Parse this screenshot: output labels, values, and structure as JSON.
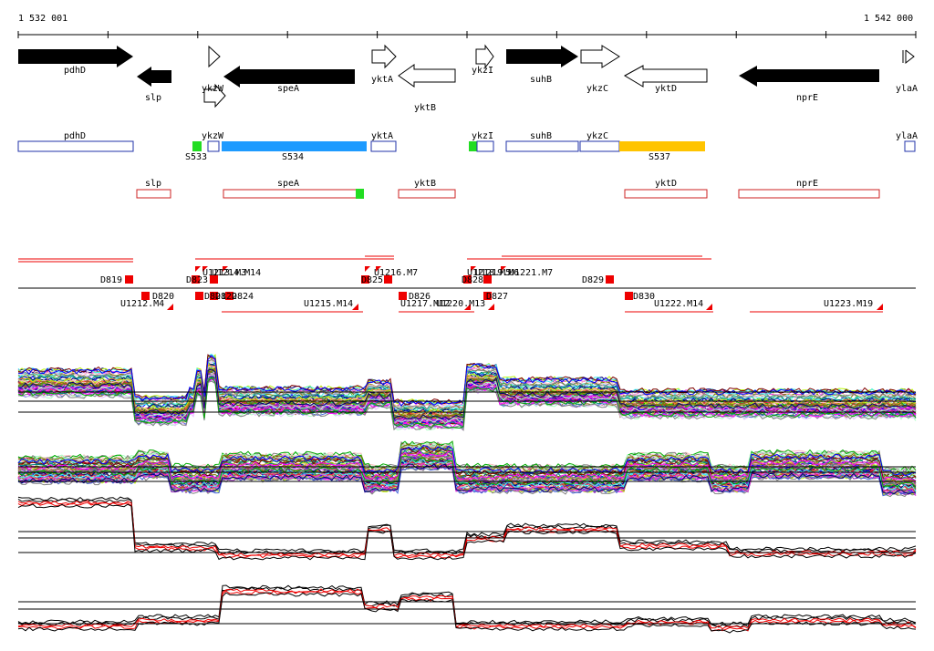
{
  "ruler": {
    "start_label": "1 532 001",
    "end_label": "1 542 000"
  },
  "genes": [
    {
      "label": "pdhD",
      "strand": "+",
      "filled": true
    },
    {
      "label": "slp",
      "strand": "-",
      "filled": true
    },
    {
      "label": "ykzW",
      "strand": "+",
      "filled": false
    },
    {
      "label": "speA",
      "strand": "-",
      "filled": true
    },
    {
      "label": "yktA",
      "strand": "+",
      "filled": false
    },
    {
      "label": "yktB",
      "strand": "-",
      "filled": false
    },
    {
      "label": "ykzI",
      "strand": "+",
      "filled": false
    },
    {
      "label": "suhB",
      "strand": "+",
      "filled": true
    },
    {
      "label": "ykzC",
      "strand": "+",
      "filled": false
    },
    {
      "label": "yktD",
      "strand": "-",
      "filled": false
    },
    {
      "label": "nprE",
      "strand": "-",
      "filled": true
    },
    {
      "label": "ylaA",
      "strand": "+",
      "filled": false
    }
  ],
  "forward_transcripts": [
    {
      "label": "pdhD"
    },
    {
      "label": "ykzW"
    },
    {
      "label": "S534"
    },
    {
      "label": "yktA"
    },
    {
      "label": "ykzI"
    },
    {
      "label": "suhB"
    },
    {
      "label": "ykzC"
    },
    {
      "label": "S537"
    },
    {
      "label": "ylaA"
    },
    {
      "label": "S533"
    }
  ],
  "reverse_transcripts": [
    {
      "label": "slp"
    },
    {
      "label": "speA"
    },
    {
      "label": "yktB"
    },
    {
      "label": "yktD"
    },
    {
      "label": "nprE"
    }
  ],
  "feature_labels_upper": [
    "D819",
    "D823",
    "U1213.M3",
    "U1214.M14",
    "D825",
    "U1216.M7",
    "D828",
    "U1218.M5",
    "U1219.M6",
    "U1221.M7",
    "D829"
  ],
  "feature_labels_lower": [
    "U1212.M4",
    "D820",
    "D821",
    "D822",
    "D824",
    "U1215.M14",
    "D826",
    "U1217.M12",
    "U1220.M13",
    "D827",
    "D830",
    "U1222.M14",
    "U1223.M19"
  ],
  "colors": {
    "gene_fill": "#000000",
    "transcript_forward": "#2233aa",
    "transcript_reverse": "#cc2222",
    "highlight_blue": "#1e9bff",
    "highlight_orange": "#ffc400",
    "highlight_green": "#22dd22",
    "feature_red": "#ee0000"
  }
}
